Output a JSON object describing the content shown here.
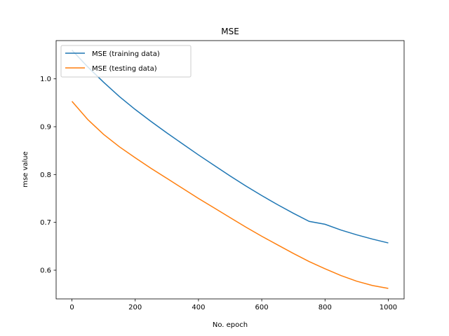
{
  "chart_data": {
    "type": "line",
    "title": "MSE",
    "xlabel": "No. epoch",
    "ylabel": "mse value",
    "xlim": [
      -50,
      1050
    ],
    "ylim": [
      0.54,
      1.08
    ],
    "xticks": [
      0,
      200,
      400,
      600,
      800,
      1000
    ],
    "yticks": [
      0.6,
      0.7,
      0.8,
      0.9,
      1.0
    ],
    "xtick_labels": [
      "0",
      "200",
      "400",
      "600",
      "800",
      "1000"
    ],
    "ytick_labels": [
      "0.6",
      "0.7",
      "0.8",
      "0.9",
      "1.0"
    ],
    "grid": false,
    "legend_position": "upper-left",
    "x": [
      0,
      50,
      100,
      150,
      200,
      250,
      300,
      350,
      400,
      450,
      500,
      550,
      600,
      650,
      700,
      750,
      800,
      850,
      900,
      950,
      1000
    ],
    "series": [
      {
        "name": "MSE (training data)",
        "color": "#1f77b4",
        "values": [
          1.06,
          1.025,
          0.993,
          0.963,
          0.936,
          0.911,
          0.887,
          0.864,
          0.841,
          0.819,
          0.797,
          0.776,
          0.756,
          0.737,
          0.719,
          0.702,
          0.696,
          0.684,
          0.674,
          0.665,
          0.657
        ]
      },
      {
        "name": "MSE (testing data)",
        "color": "#ff7f0e",
        "values": [
          0.953,
          0.915,
          0.884,
          0.858,
          0.835,
          0.813,
          0.792,
          0.771,
          0.75,
          0.73,
          0.71,
          0.69,
          0.671,
          0.653,
          0.635,
          0.618,
          0.603,
          0.589,
          0.577,
          0.568,
          0.562
        ]
      }
    ]
  }
}
